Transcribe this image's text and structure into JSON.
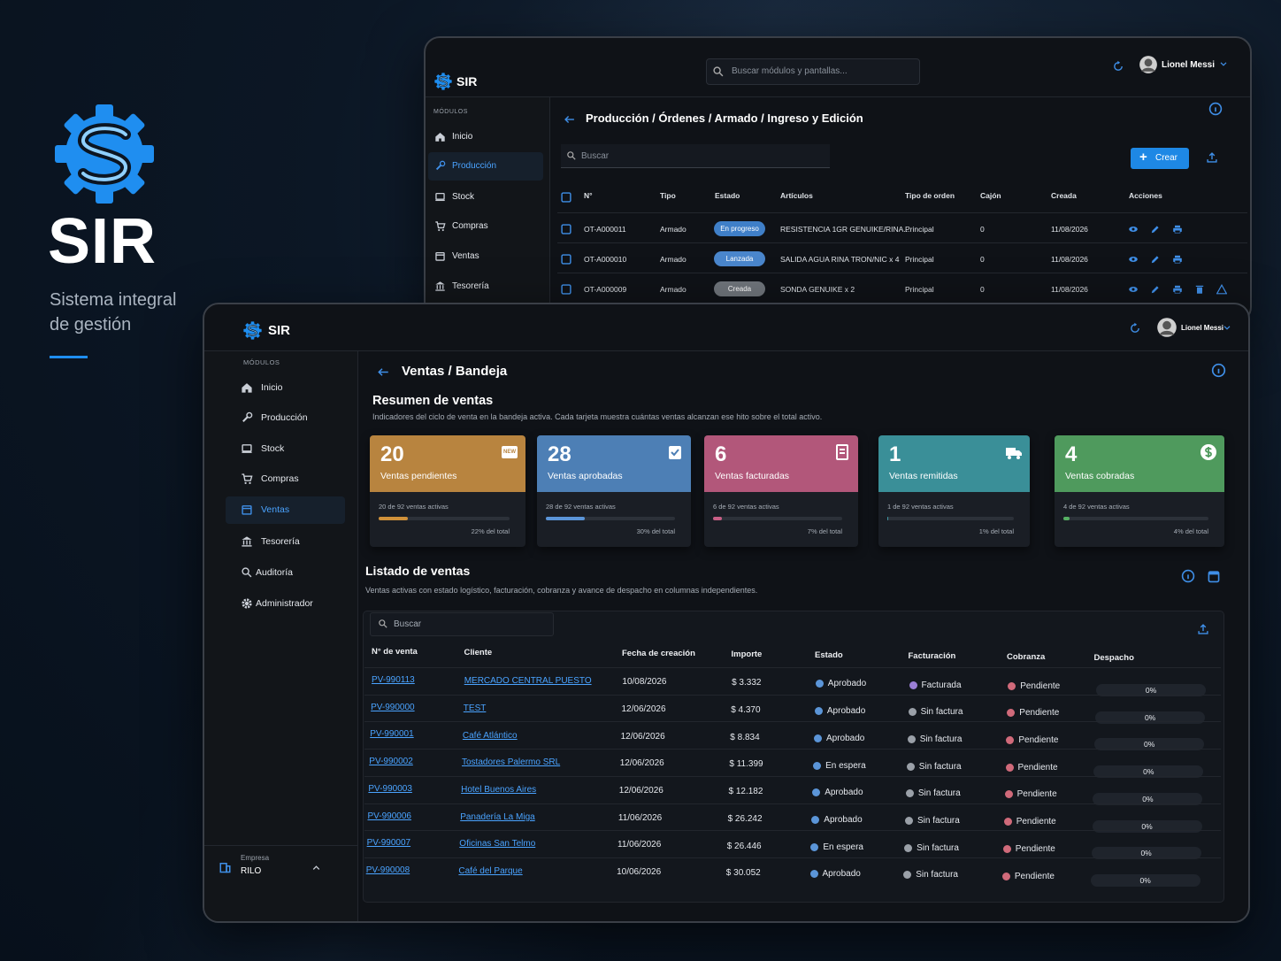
{
  "brand": {
    "title": "SIR",
    "subtitle_lines": [
      "Sistema integral",
      "de gestión"
    ]
  },
  "back_window": {
    "app": "SIR",
    "search": "Buscar módulos y pantallas...",
    "user": "Lionel Messi",
    "modules_label": "MÓDULOS",
    "menu": [
      "Inicio",
      "Producción",
      "Stock",
      "Compras",
      "Ventas",
      "Tesorería"
    ],
    "breadcrumb": "Producción / Órdenes / Armado / Ingreso y Edición",
    "table_search": "Buscar",
    "create": "Crear",
    "columns": [
      "N°",
      "Tipo",
      "Estado",
      "Artículos",
      "Tipo de orden",
      "Cajón",
      "Creada",
      "Acciones"
    ],
    "rows": [
      [
        "OT-A000011",
        "Armado",
        "En progreso",
        "RESISTENCIA 1GR GENUIKE/RINA...",
        "Principal",
        "0",
        "11/08/2026"
      ],
      [
        "OT-A000010",
        "Armado",
        "Lanzada",
        "SALIDA AGUA RINA TRON/NIC x 4",
        "Principal",
        "0",
        "11/08/2026"
      ],
      [
        "OT-A000009",
        "Armado",
        "Creada",
        "SONDA GENUIKE x 2",
        "Principal",
        "0",
        "11/08/2026"
      ]
    ]
  },
  "front_window": {
    "app": "SIR",
    "user": "Lionel Messi",
    "modules_label": "MÓDULOS",
    "menu": [
      "Inicio",
      "Producción",
      "Stock",
      "Compras",
      "Ventas",
      "Tesorería",
      "Auditoría",
      "Administrador"
    ],
    "company_label": "Empresa",
    "company": "RILO",
    "breadcrumb": "Ventas / Bandeja",
    "summary_title": "Resumen de ventas",
    "summary_desc": "Indicadores del ciclo de venta en la bandeja activa. Cada tarjeta muestra cuántas ventas alcanzan ese hito sobre el total activo.",
    "cards": [
      {
        "value": "20",
        "label": "Ventas pendientes",
        "badge": "NEW",
        "detail": "20 de 92 ventas activas",
        "percent": 22,
        "percent_label": "22% del total",
        "color": "#b8843f",
        "bar_color": "#d0913a"
      },
      {
        "value": "28",
        "label": "Ventas aprobadas",
        "detail": "28 de 92 ventas activas",
        "percent": 30,
        "percent_label": "30% del total",
        "color": "#4d7fb5",
        "bar_color": "#5b95d8"
      },
      {
        "value": "6",
        "label": "Ventas facturadas",
        "detail": "6 de 92 ventas activas",
        "percent": 7,
        "percent_label": "7% del total",
        "color": "#b2577a",
        "bar_color": "#c85f86"
      },
      {
        "value": "1",
        "label": "Ventas remitidas",
        "detail": "1 de 92 ventas activas",
        "percent": 1,
        "percent_label": "1% del total",
        "color": "#3a8f98",
        "bar_color": "#3f9aa5"
      },
      {
        "value": "4",
        "label": "Ventas cobradas",
        "detail": "4 de 92 ventas activas",
        "percent": 4,
        "percent_label": "4% del total",
        "color": "#4f9a5d",
        "bar_color": "#56b063"
      }
    ],
    "list_title": "Listado de ventas",
    "list_desc": "Ventas activas con estado logístico, facturación, cobranza y avance de despacho en columnas independientes.",
    "table_search": "Buscar",
    "columns": [
      "N° de venta",
      "Cliente",
      "Fecha de creación",
      "Importe",
      "Estado",
      "Facturación",
      "Cobranza",
      "Despacho"
    ],
    "rows": [
      {
        "id": "PV-990113",
        "client": "MERCADO CENTRAL PUESTO",
        "date": "10/08/2026",
        "amount": "$ 3.332",
        "status": "Aprobado",
        "billing": "Facturada",
        "collection": "Pendiente",
        "dispatch": 0,
        "dispatch_label": "0%"
      },
      {
        "id": "PV-990000",
        "client": "TEST",
        "date": "12/06/2026",
        "amount": "$ 4.370",
        "status": "Aprobado",
        "billing": "Sin factura",
        "collection": "Pendiente",
        "dispatch": 0,
        "dispatch_label": "0%"
      },
      {
        "id": "PV-990001",
        "client": "Café Atlántico",
        "date": "12/06/2026",
        "amount": "$ 8.834",
        "status": "Aprobado",
        "billing": "Sin factura",
        "collection": "Pendiente",
        "dispatch": 0,
        "dispatch_label": "0%"
      },
      {
        "id": "PV-990002",
        "client": "Tostadores Palermo SRL",
        "date": "12/06/2026",
        "amount": "$ 11.399",
        "status": "En espera",
        "billing": "Sin factura",
        "collection": "Pendiente",
        "dispatch": 0,
        "dispatch_label": "0%"
      },
      {
        "id": "PV-990003",
        "client": "Hotel Buenos Aires",
        "date": "12/06/2026",
        "amount": "$ 12.182",
        "status": "Aprobado",
        "billing": "Sin factura",
        "collection": "Pendiente",
        "dispatch": 0,
        "dispatch_label": "0%"
      },
      {
        "id": "PV-990006",
        "client": "Panadería La Miga",
        "date": "11/06/2026",
        "amount": "$ 26.242",
        "status": "Aprobado",
        "billing": "Sin factura",
        "collection": "Pendiente",
        "dispatch": 0,
        "dispatch_label": "0%"
      },
      {
        "id": "PV-990007",
        "client": "Oficinas San Telmo",
        "date": "11/06/2026",
        "amount": "$ 26.446",
        "status": "En espera",
        "billing": "Sin factura",
        "collection": "Pendiente",
        "dispatch": 0,
        "dispatch_label": "0%"
      },
      {
        "id": "PV-990008",
        "client": "Café del Parque",
        "date": "10/06/2026",
        "amount": "$ 30.052",
        "status": "Aprobado",
        "billing": "Sin factura",
        "collection": "Pendiente",
        "dispatch": 0,
        "dispatch_label": "0%"
      }
    ]
  }
}
